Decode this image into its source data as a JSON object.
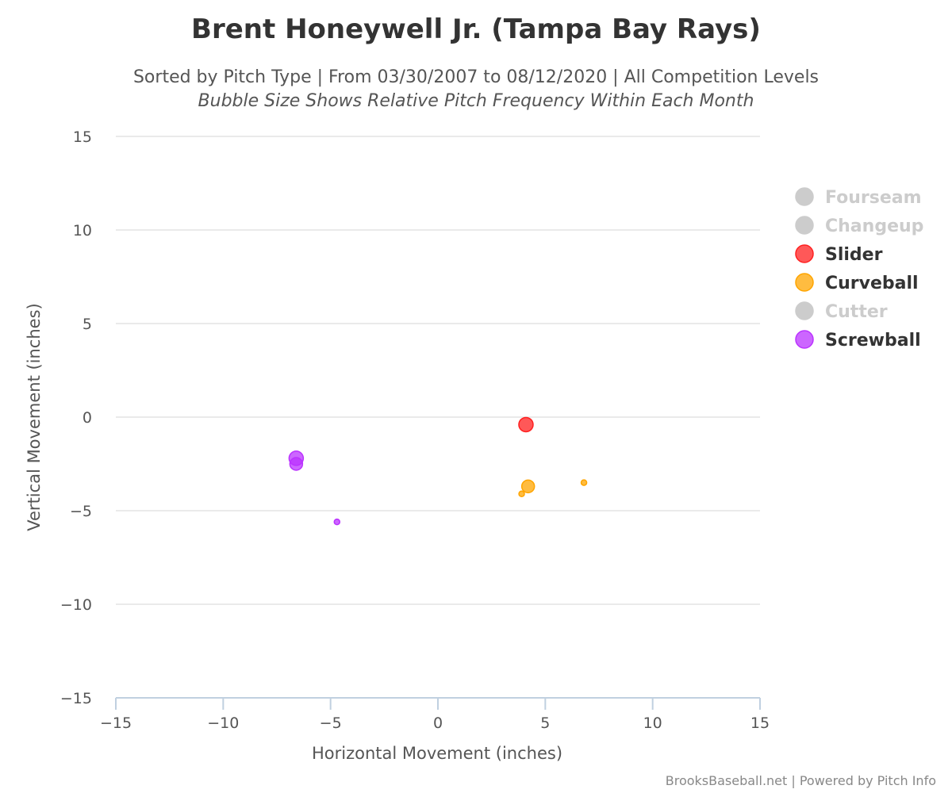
{
  "chart_data": {
    "type": "scatter",
    "title": "Brent Honeywell Jr. (Tampa Bay Rays)",
    "subtitle": "Sorted by Pitch Type | From 03/30/2007 to 08/12/2020 | All Competition Levels",
    "subtitle2": "Bubble Size Shows Relative Pitch Frequency Within Each Month",
    "xlabel": "Horizontal Movement (inches)",
    "ylabel": "Vertical Movement (inches)",
    "xlim": [
      -15,
      15
    ],
    "ylim": [
      -15,
      15
    ],
    "x_ticks": [
      -15,
      -10,
      -5,
      0,
      5,
      10,
      15
    ],
    "y_ticks": [
      15,
      10,
      5,
      0,
      -5,
      -10,
      -15
    ],
    "x_tick_labels": [
      "−15",
      "−10",
      "−5",
      "0",
      "5",
      "10",
      "15"
    ],
    "y_tick_labels": [
      "15",
      "10",
      "5",
      "0",
      "−5",
      "−10",
      "−15"
    ],
    "grid": "horizontal",
    "legend_position": "right",
    "series": [
      {
        "name": "Fourseam",
        "color": "#cccccc",
        "visible": false,
        "points": []
      },
      {
        "name": "Changeup",
        "color": "#cccccc",
        "visible": false,
        "points": []
      },
      {
        "name": "Slider",
        "color": "#ff2020",
        "visible": true,
        "points": [
          {
            "x": 4.1,
            "y": -0.4,
            "size": "large"
          }
        ]
      },
      {
        "name": "Curveball",
        "color": "#ffa500",
        "visible": true,
        "points": [
          {
            "x": 4.2,
            "y": -3.7,
            "size": "medium"
          },
          {
            "x": 3.9,
            "y": -4.1,
            "size": "tiny"
          },
          {
            "x": 6.8,
            "y": -3.5,
            "size": "tiny"
          }
        ]
      },
      {
        "name": "Cutter",
        "color": "#cccccc",
        "visible": false,
        "points": []
      },
      {
        "name": "Screwball",
        "color": "#bb33ff",
        "visible": true,
        "points": [
          {
            "x": -6.6,
            "y": -2.2,
            "size": "large"
          },
          {
            "x": -6.6,
            "y": -2.5,
            "size": "medium"
          },
          {
            "x": -4.7,
            "y": -5.6,
            "size": "tiny"
          }
        ]
      }
    ]
  },
  "credits": "BrooksBaseball.net | Powered by Pitch Info"
}
